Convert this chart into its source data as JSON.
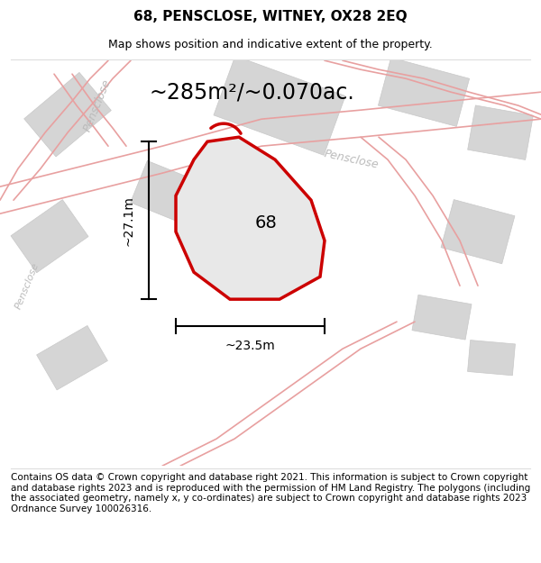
{
  "title": "68, PENSCLOSE, WITNEY, OX28 2EQ",
  "subtitle": "Map shows position and indicative extent of the property.",
  "footer": "Contains OS data © Crown copyright and database right 2021. This information is subject to Crown copyright and database rights 2023 and is reproduced with the permission of HM Land Registry. The polygons (including the associated geometry, namely x, y co-ordinates) are subject to Crown copyright and database rights 2023 Ordnance Survey 100026316.",
  "area_text": "~285m²/~0.070ac.",
  "width_text": "~23.5m",
  "height_text": "~27.1m",
  "label_68": "68",
  "bg_color": "#ffffff",
  "map_bg": "#f5f5f5",
  "pink_road": "#e8a0a0",
  "gray_block": "#d5d5d5",
  "gray_block_edge": "#c8c8c8",
  "red_outline": "#cc0000",
  "road_label_color": "#bbbbbb",
  "title_fontsize": 11,
  "subtitle_fontsize": 9,
  "footer_fontsize": 7.5,
  "area_fontsize": 17,
  "dim_fontsize": 10,
  "label_fontsize": 14,
  "road_label_fontsize": 9
}
